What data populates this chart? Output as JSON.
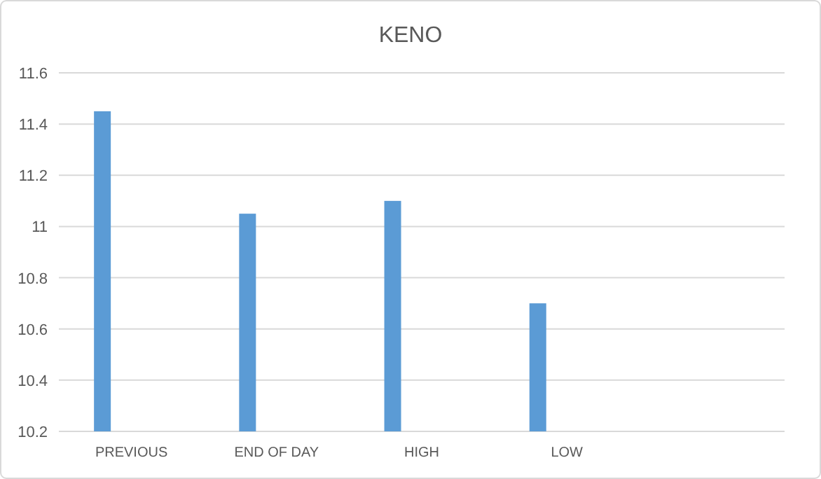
{
  "chart_data": {
    "type": "bar",
    "title": "KENO",
    "categories": [
      "PREVIOUS",
      "END OF DAY",
      "HIGH",
      "LOW",
      null
    ],
    "values": [
      11.45,
      11.05,
      11.1,
      10.7,
      null
    ],
    "color": "#5b9bd5",
    "ylim": [
      10.2,
      11.6
    ],
    "yticks": [
      10.2,
      10.4,
      10.6,
      10.8,
      11,
      11.2,
      11.4,
      11.6
    ],
    "grid": "y"
  }
}
